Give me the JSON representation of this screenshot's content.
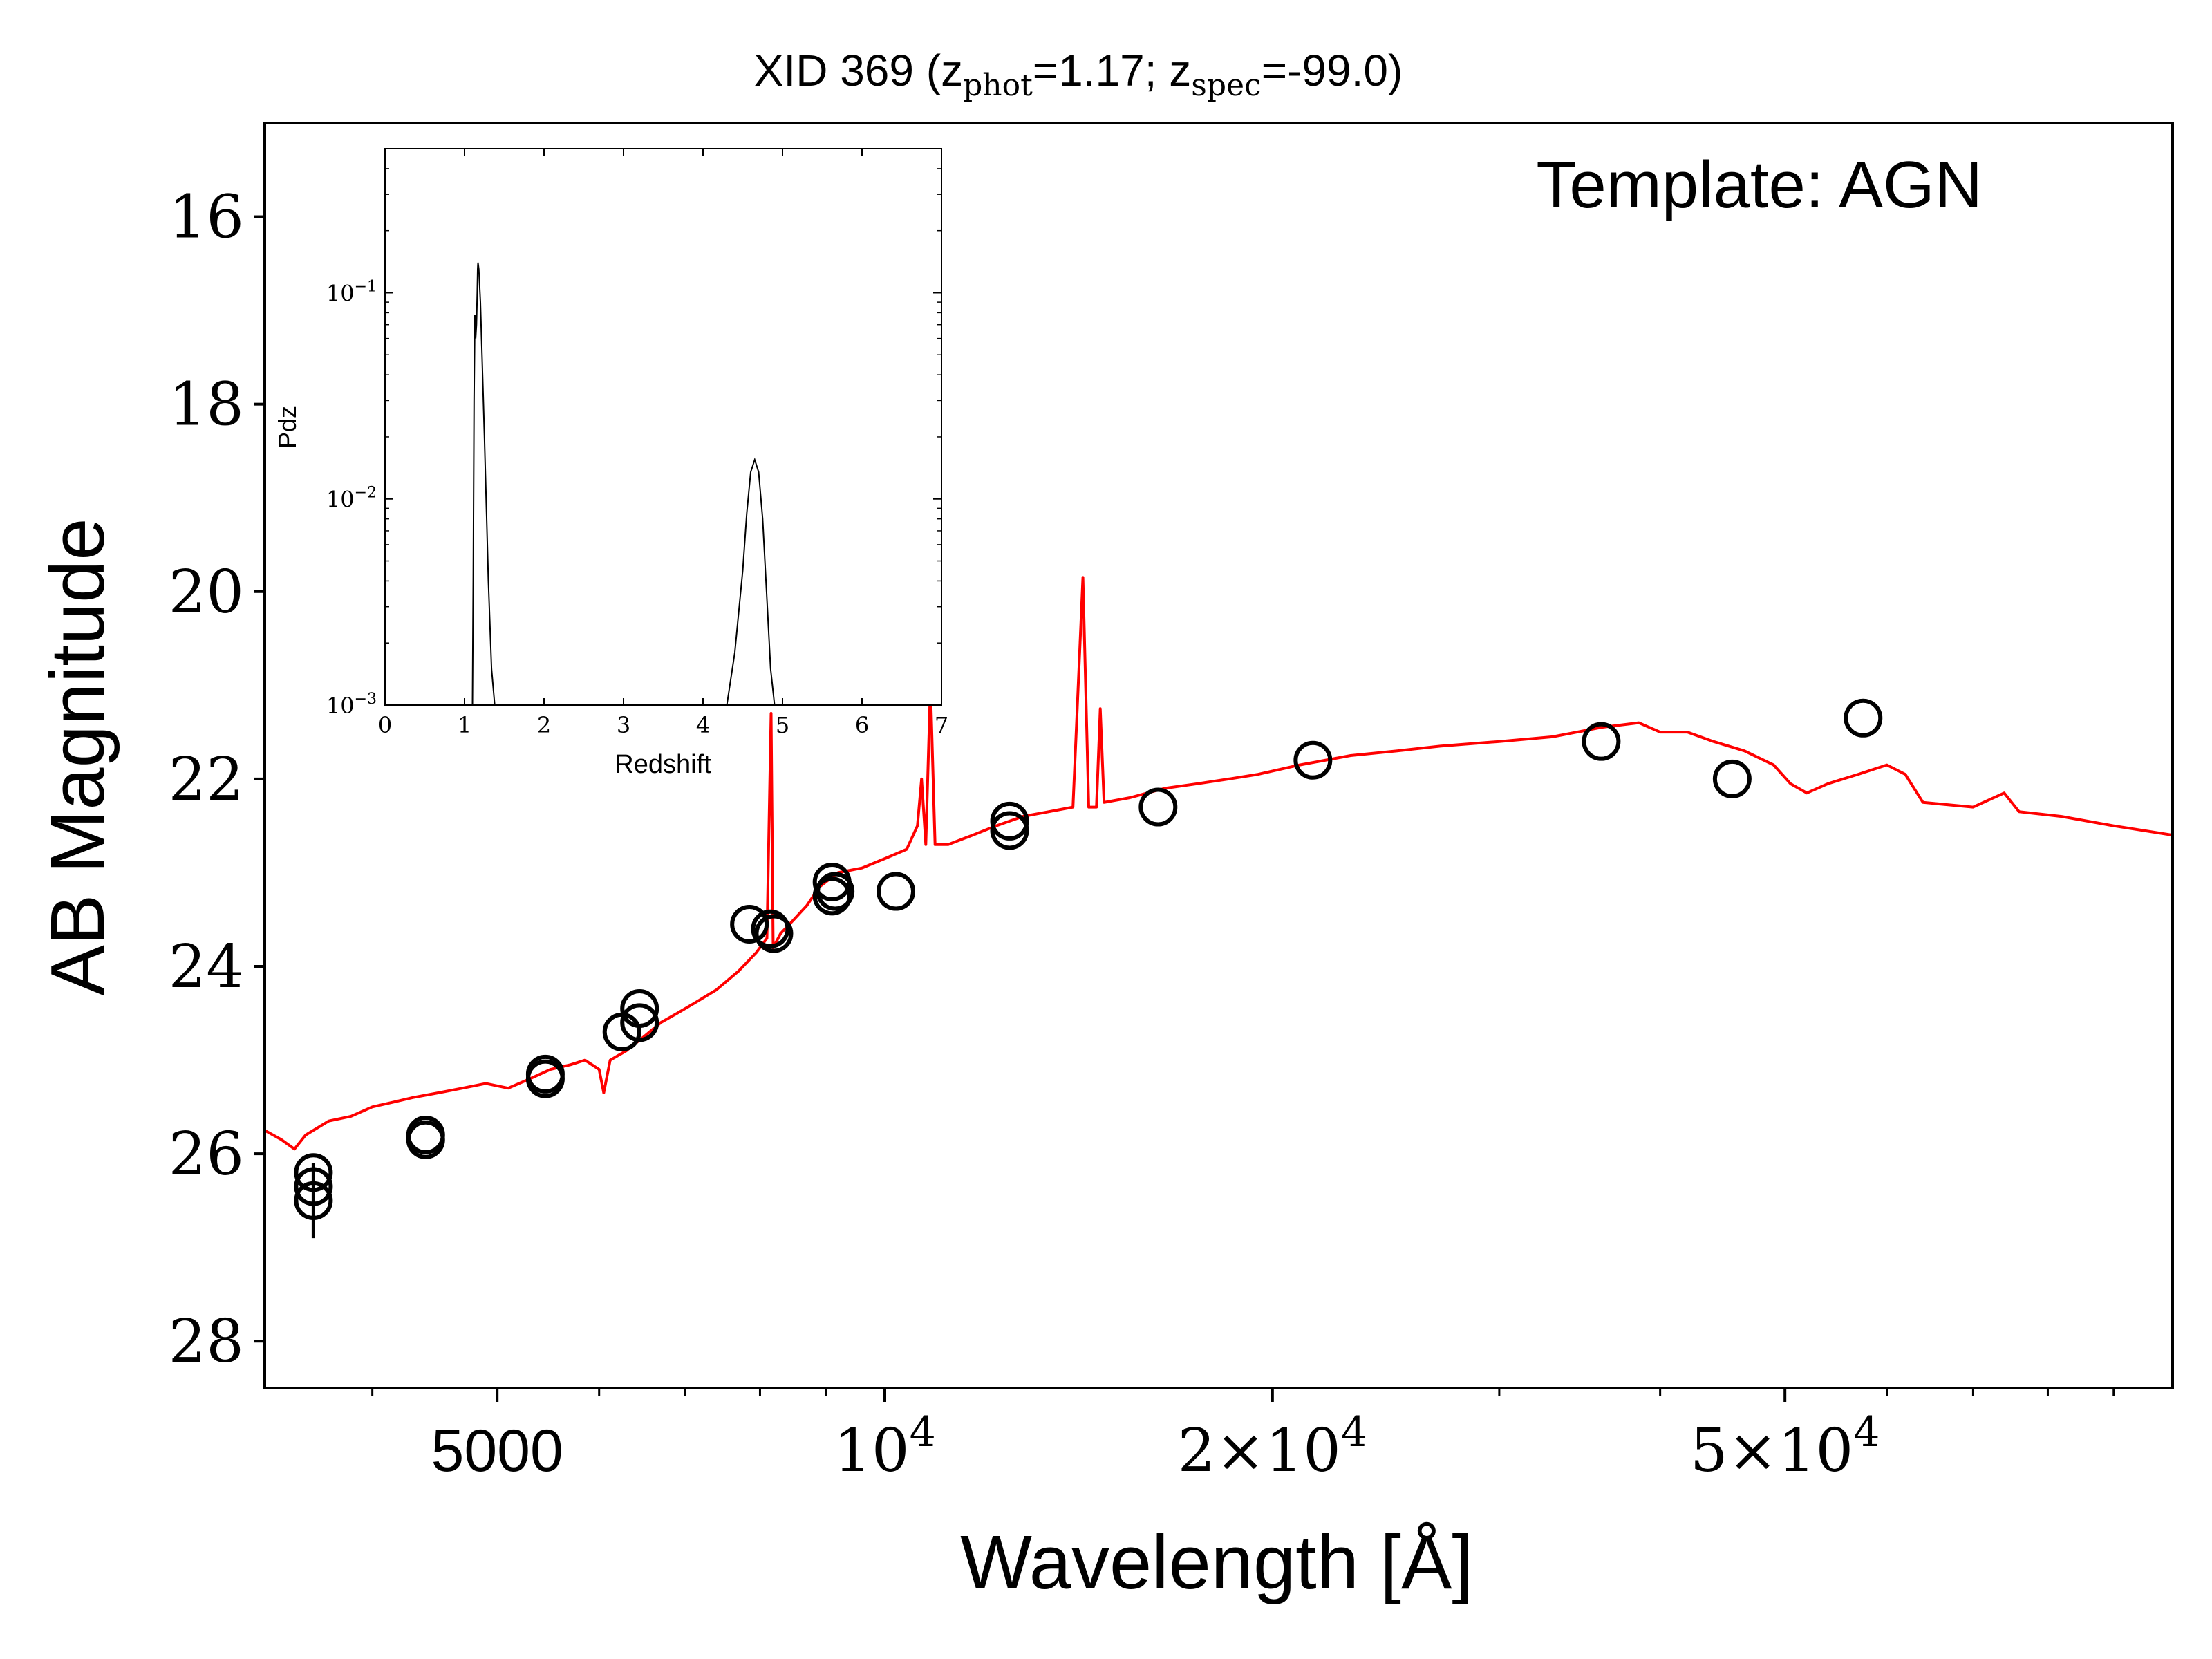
{
  "chart_data": [
    {
      "type": "scatter",
      "title_parts": {
        "prefix": "XID 369 (z",
        "phot_sub": "phot",
        "phot_value": "=1.17; z",
        "spec_sub": "spec",
        "spec_value": "=-99.0)"
      },
      "annotation": "Template: AGN",
      "xlabel": "Wavelength [Å]",
      "ylabel": "AB Magnitude",
      "xscale": "log",
      "xlim": [
        3300,
        100000
      ],
      "ylim": [
        28.5,
        15
      ],
      "y_inverted": true,
      "y_ticks": [
        16,
        18,
        20,
        22,
        24,
        26,
        28
      ],
      "y_tick_labels": [
        "16",
        "18",
        "20",
        "22",
        "24",
        "26",
        "28"
      ],
      "x_ticks": [
        5000,
        10000,
        20000,
        50000
      ],
      "x_tick_labels": [
        {
          "mantissa": "5000",
          "exp": ""
        },
        {
          "mantissa": "10",
          "exp": "4"
        },
        {
          "mantissa": "2×10",
          "exp": "4"
        },
        {
          "mantissa": "5×10",
          "exp": "4"
        }
      ],
      "x_minor_ticks": [
        4000,
        6000,
        7000,
        8000,
        9000,
        30000,
        40000,
        60000,
        70000,
        80000,
        90000
      ],
      "colors": {
        "template": "#ff0000",
        "points": "#000000"
      },
      "series": [
        {
          "kind": "photometry",
          "points": [
            {
              "x": 3600,
              "y": 26.5,
              "yerr": 0.4
            },
            {
              "x": 3600,
              "y": 26.2
            },
            {
              "x": 3600,
              "y": 26.35
            },
            {
              "x": 4400,
              "y": 25.85
            },
            {
              "x": 4400,
              "y": 25.8
            },
            {
              "x": 5450,
              "y": 25.2
            },
            {
              "x": 5450,
              "y": 25.15
            },
            {
              "x": 6250,
              "y": 24.7
            },
            {
              "x": 6450,
              "y": 24.6
            },
            {
              "x": 6450,
              "y": 24.45
            },
            {
              "x": 7850,
              "y": 23.55
            },
            {
              "x": 8150,
              "y": 23.6
            },
            {
              "x": 8200,
              "y": 23.65
            },
            {
              "x": 9100,
              "y": 23.25
            },
            {
              "x": 9100,
              "y": 23.1
            },
            {
              "x": 9150,
              "y": 23.2
            },
            {
              "x": 10200,
              "y": 23.2
            },
            {
              "x": 12500,
              "y": 22.45
            },
            {
              "x": 12500,
              "y": 22.55
            },
            {
              "x": 16300,
              "y": 22.3
            },
            {
              "x": 21500,
              "y": 21.8
            },
            {
              "x": 36000,
              "y": 21.6
            },
            {
              "x": 45500,
              "y": 22.0
            },
            {
              "x": 57500,
              "y": 21.35
            }
          ]
        },
        {
          "kind": "template",
          "points": [
            [
              3300,
              25.75
            ],
            [
              3400,
              25.85
            ],
            [
              3480,
              25.95
            ],
            [
              3550,
              25.8
            ],
            [
              3700,
              25.65
            ],
            [
              3850,
              25.6
            ],
            [
              4000,
              25.5
            ],
            [
              4150,
              25.45
            ],
            [
              4300,
              25.4
            ],
            [
              4500,
              25.35
            ],
            [
              4700,
              25.3
            ],
            [
              4900,
              25.25
            ],
            [
              5100,
              25.3
            ],
            [
              5300,
              25.2
            ],
            [
              5500,
              25.1
            ],
            [
              5700,
              25.05
            ],
            [
              5850,
              25.0
            ],
            [
              6000,
              25.1
            ],
            [
              6050,
              25.35
            ],
            [
              6120,
              25.0
            ],
            [
              6300,
              24.9
            ],
            [
              6500,
              24.75
            ],
            [
              6700,
              24.6
            ],
            [
              6900,
              24.5
            ],
            [
              7100,
              24.4
            ],
            [
              7400,
              24.25
            ],
            [
              7700,
              24.05
            ],
            [
              7950,
              23.85
            ],
            [
              8100,
              23.7
            ],
            [
              8160,
              21.3
            ],
            [
              8190,
              23.8
            ],
            [
              8300,
              23.65
            ],
            [
              8500,
              23.5
            ],
            [
              8700,
              23.35
            ],
            [
              8900,
              23.15
            ],
            [
              9200,
              23.0
            ],
            [
              9600,
              22.95
            ],
            [
              10000,
              22.85
            ],
            [
              10400,
              22.75
            ],
            [
              10600,
              22.5
            ],
            [
              10680,
              22.0
            ],
            [
              10760,
              22.7
            ],
            [
              10850,
              21.0
            ],
            [
              10940,
              22.7
            ],
            [
              11200,
              22.7
            ],
            [
              11700,
              22.6
            ],
            [
              12200,
              22.5
            ],
            [
              12800,
              22.4
            ],
            [
              13400,
              22.35
            ],
            [
              14000,
              22.3
            ],
            [
              14250,
              19.85
            ],
            [
              14400,
              22.3
            ],
            [
              14600,
              22.3
            ],
            [
              14700,
              21.25
            ],
            [
              14800,
              22.25
            ],
            [
              15500,
              22.2
            ],
            [
              16500,
              22.1
            ],
            [
              17500,
              22.05
            ],
            [
              18500,
              22.0
            ],
            [
              19500,
              21.95
            ],
            [
              21000,
              21.85
            ],
            [
              23000,
              21.75
            ],
            [
              25000,
              21.7
            ],
            [
              27000,
              21.65
            ],
            [
              30000,
              21.6
            ],
            [
              33000,
              21.55
            ],
            [
              36000,
              21.45
            ],
            [
              38500,
              21.4
            ],
            [
              40000,
              21.5
            ],
            [
              42000,
              21.5
            ],
            [
              44000,
              21.6
            ],
            [
              46500,
              21.7
            ],
            [
              49000,
              21.85
            ],
            [
              50500,
              22.05
            ],
            [
              52000,
              22.15
            ],
            [
              54000,
              22.05
            ],
            [
              57000,
              21.95
            ],
            [
              60000,
              21.85
            ],
            [
              62000,
              21.95
            ],
            [
              64000,
              22.25
            ],
            [
              70000,
              22.3
            ],
            [
              74000,
              22.15
            ],
            [
              76000,
              22.35
            ],
            [
              82000,
              22.4
            ],
            [
              90000,
              22.5
            ],
            [
              100000,
              22.6
            ]
          ]
        }
      ]
    },
    {
      "type": "line",
      "xlabel": "Redshift",
      "ylabel": "Pdz",
      "xlim": [
        0,
        7
      ],
      "ylim": [
        0.001,
        0.5
      ],
      "yscale": "log",
      "x_ticks": [
        0,
        1,
        2,
        3,
        4,
        5,
        6,
        7
      ],
      "x_tick_labels": [
        "0",
        "1",
        "2",
        "3",
        "4",
        "5",
        "6",
        "7"
      ],
      "y_ticks": [
        0.001,
        0.01,
        0.1
      ],
      "y_tick_labels": [
        {
          "base": "10",
          "exp": "−3"
        },
        {
          "base": "10",
          "exp": "−2"
        },
        {
          "base": "10",
          "exp": "−1"
        }
      ],
      "colors": {
        "line": "#000000"
      },
      "series": [
        {
          "x": [
            1.1,
            1.11,
            1.12,
            1.13,
            1.14,
            1.15,
            1.16,
            1.165,
            1.17,
            1.18,
            1.2,
            1.22,
            1.25,
            1.3,
            1.34,
            1.38
          ],
          "y": [
            0.001,
            0.004,
            0.03,
            0.078,
            0.06,
            0.07,
            0.1,
            0.13,
            0.14,
            0.13,
            0.09,
            0.05,
            0.02,
            0.004,
            0.0015,
            0.001
          ]
        },
        {
          "x": [
            4.3,
            4.4,
            4.5,
            4.55,
            4.6,
            4.65,
            4.7,
            4.75,
            4.8,
            4.85,
            4.9
          ],
          "y": [
            0.001,
            0.0018,
            0.0045,
            0.0085,
            0.0135,
            0.0155,
            0.0135,
            0.008,
            0.0035,
            0.0015,
            0.001
          ]
        }
      ]
    }
  ]
}
